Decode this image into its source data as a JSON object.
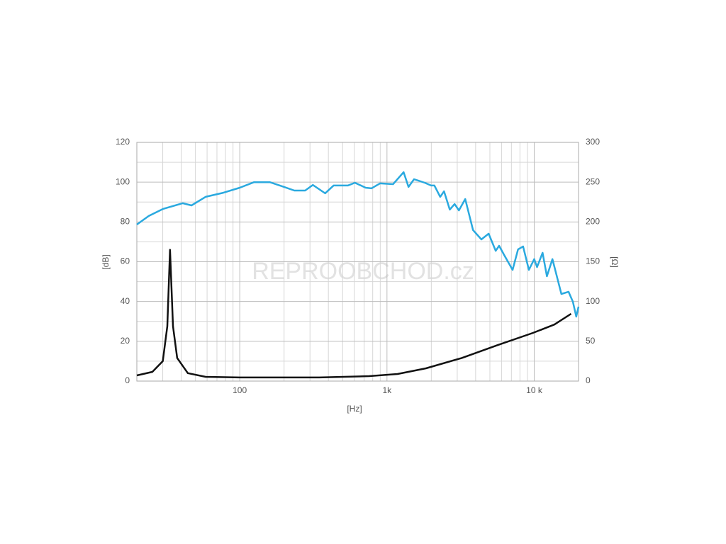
{
  "chart_data": {
    "type": "line",
    "watermark": "REPROOBCHOD.cz",
    "x_label": "[Hz]",
    "y_label": "[dB]",
    "y2_label": "[Ω]",
    "xscale": "log",
    "grid": true,
    "xlim": [
      20,
      20000
    ],
    "xticks": [
      100,
      {
        "value": 1000,
        "label": "1k"
      },
      {
        "value": 10000,
        "label": "10 k"
      }
    ],
    "xminorticks": [
      20,
      30,
      40,
      50,
      60,
      70,
      80,
      90,
      200,
      300,
      400,
      500,
      600,
      700,
      800,
      900,
      2000,
      3000,
      4000,
      5000,
      6000,
      7000,
      8000,
      9000
    ],
    "ylim": [
      0,
      120
    ],
    "yticks": [
      0,
      20,
      40,
      60,
      80,
      100,
      120
    ],
    "yminorticks": [
      10,
      30,
      50,
      70,
      90,
      110
    ],
    "y2lim": [
      0,
      300
    ],
    "y2ticks": [
      0,
      50,
      100,
      150,
      200,
      250,
      300
    ],
    "series": [
      {
        "color": "#2aa9df",
        "x": [
          20,
          24.1,
          30,
          41,
          47,
          58.6,
          77.4,
          100,
          125,
          160,
          200,
          235,
          278,
          314,
          380,
          434,
          542,
          606,
          716,
          784,
          897,
          1100,
          1297,
          1400,
          1527,
          1805,
          1995,
          2100,
          2300,
          2440,
          2670,
          2880,
          3080,
          3400,
          3840,
          4380,
          4900,
          5480,
          5780,
          6250,
          7130,
          7770,
          8400,
          9200,
          10000,
          10450,
          11400,
          12200,
          13300,
          15300,
          17100,
          18300,
          19300,
          20000
        ],
        "values": [
          78.7,
          83,
          86.5,
          89.4,
          88.3,
          92.6,
          94.7,
          97.2,
          100,
          100,
          97.6,
          95.8,
          95.8,
          98.6,
          94.4,
          98.3,
          98.3,
          99.7,
          97.2,
          96.9,
          99.4,
          99,
          105,
          97.6,
          101.5,
          99.7,
          98.3,
          98.3,
          92.6,
          95.4,
          86.2,
          89,
          85.8,
          91.5,
          75.9,
          71.2,
          74.1,
          65.5,
          68,
          63.4,
          55.9,
          66.2,
          67.7,
          55.9,
          61.3,
          57.3,
          64.5,
          52.7,
          61.3,
          43.8,
          44.9,
          39.9,
          32.4,
          37.4
        ]
      },
      {
        "color": "#111111",
        "axis": "y2",
        "x": [
          20,
          25.5,
          30,
          32.2,
          33.6,
          35.2,
          37.6,
          44.4,
          58.6,
          100,
          347,
          757,
          1180,
          1840,
          3220,
          5600,
          9800,
          13700,
          17800
        ],
        "values": [
          7.1,
          11.6,
          25,
          69,
          165,
          69,
          29,
          10,
          5.3,
          4.5,
          4.5,
          6.2,
          8.9,
          16,
          29,
          45,
          60.5,
          71,
          84.6
        ]
      }
    ]
  }
}
